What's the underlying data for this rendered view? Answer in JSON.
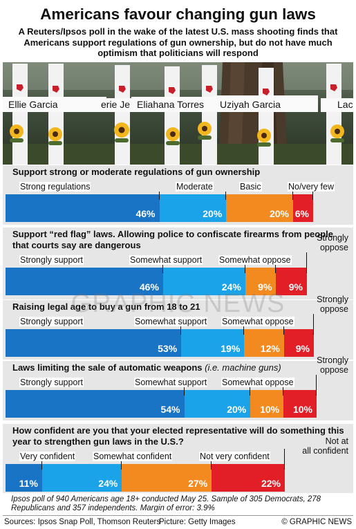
{
  "header": {
    "title": "Americans favour changing gun laws",
    "subtitle": "A Reuters/Ipsos poll in the wake of the latest U.S. mass shooting finds that Americans support regulations of gun ownership, but do not have much optimism that politicians will respond"
  },
  "photo": {
    "names": [
      "Ellie Garcia",
      "erie Je",
      "Eliahana Torres",
      "Uziyah Garcia",
      "Lac"
    ]
  },
  "colors": {
    "dark_blue": "#1a74c6",
    "light_blue": "#1aa3e8",
    "orange": "#f28a1f",
    "red": "#e21f26",
    "bar_bg": "#e6e6e6"
  },
  "watermark": "GRAPHIC NEWS",
  "chart_data": [
    {
      "type": "bar",
      "orientation": "horizontal-stacked",
      "title": "Support strong or moderate regulations of gun ownership",
      "categories": [
        "Strong regulations",
        "Moderate",
        "Basic",
        "No/very few"
      ],
      "values": [
        46,
        20,
        20,
        6
      ],
      "value_labels": [
        "46%",
        "20%",
        "20%",
        "6%"
      ],
      "xlim": [
        0,
        100
      ]
    },
    {
      "type": "bar",
      "orientation": "horizontal-stacked",
      "title": "Support “red flag” laws. Allowing police to confiscate firearms from people that courts say are dangerous",
      "categories": [
        "Strongly support",
        "Somewhat support",
        "Somewhat oppose",
        "Strongly oppose"
      ],
      "values": [
        46,
        24,
        9,
        9
      ],
      "value_labels": [
        "46%",
        "24%",
        "9%",
        "9%"
      ],
      "xlim": [
        0,
        100
      ]
    },
    {
      "type": "bar",
      "orientation": "horizontal-stacked",
      "title": "Raising legal age to buy a gun from 18 to 21",
      "categories": [
        "Strongly support",
        "Somewhat support",
        "Somewhat oppose",
        "Strongly oppose"
      ],
      "values": [
        53,
        19,
        12,
        9
      ],
      "value_labels": [
        "53%",
        "19%",
        "12%",
        "9%"
      ],
      "xlim": [
        0,
        100
      ]
    },
    {
      "type": "bar",
      "orientation": "horizontal-stacked",
      "title": "Laws limiting the sale of automatic weapons",
      "title_note": "(i.e. machine guns)",
      "categories": [
        "Strongly support",
        "Somewhat support",
        "Somewhat oppose",
        "Strongly oppose"
      ],
      "values": [
        54,
        20,
        10,
        10
      ],
      "value_labels": [
        "54%",
        "20%",
        "10%",
        "10%"
      ],
      "xlim": [
        0,
        100
      ]
    },
    {
      "type": "bar",
      "orientation": "horizontal-stacked",
      "title": "How confident are you that your elected representative will do something this year to strengthen gun laws in the U.S.?",
      "categories": [
        "Very confident",
        "Somewhat confident",
        "Not very confident",
        "Not at all confident"
      ],
      "values": [
        11,
        24,
        27,
        22
      ],
      "value_labels": [
        "11%",
        "24%",
        "27%",
        "22%"
      ],
      "xlim": [
        0,
        100
      ]
    }
  ],
  "note": "Ipsos poll of 940 Americans age 18+ conducted May 25. Sample of 305 Democrats, 278 Republicans and 357 independents. Margin of error: 3.9%",
  "footer": {
    "sources": "Sources: Ipsos Snap Poll, Thomson Reuters",
    "picture": "Picture: Getty Images",
    "brand": "© GRAPHIC NEWS"
  }
}
